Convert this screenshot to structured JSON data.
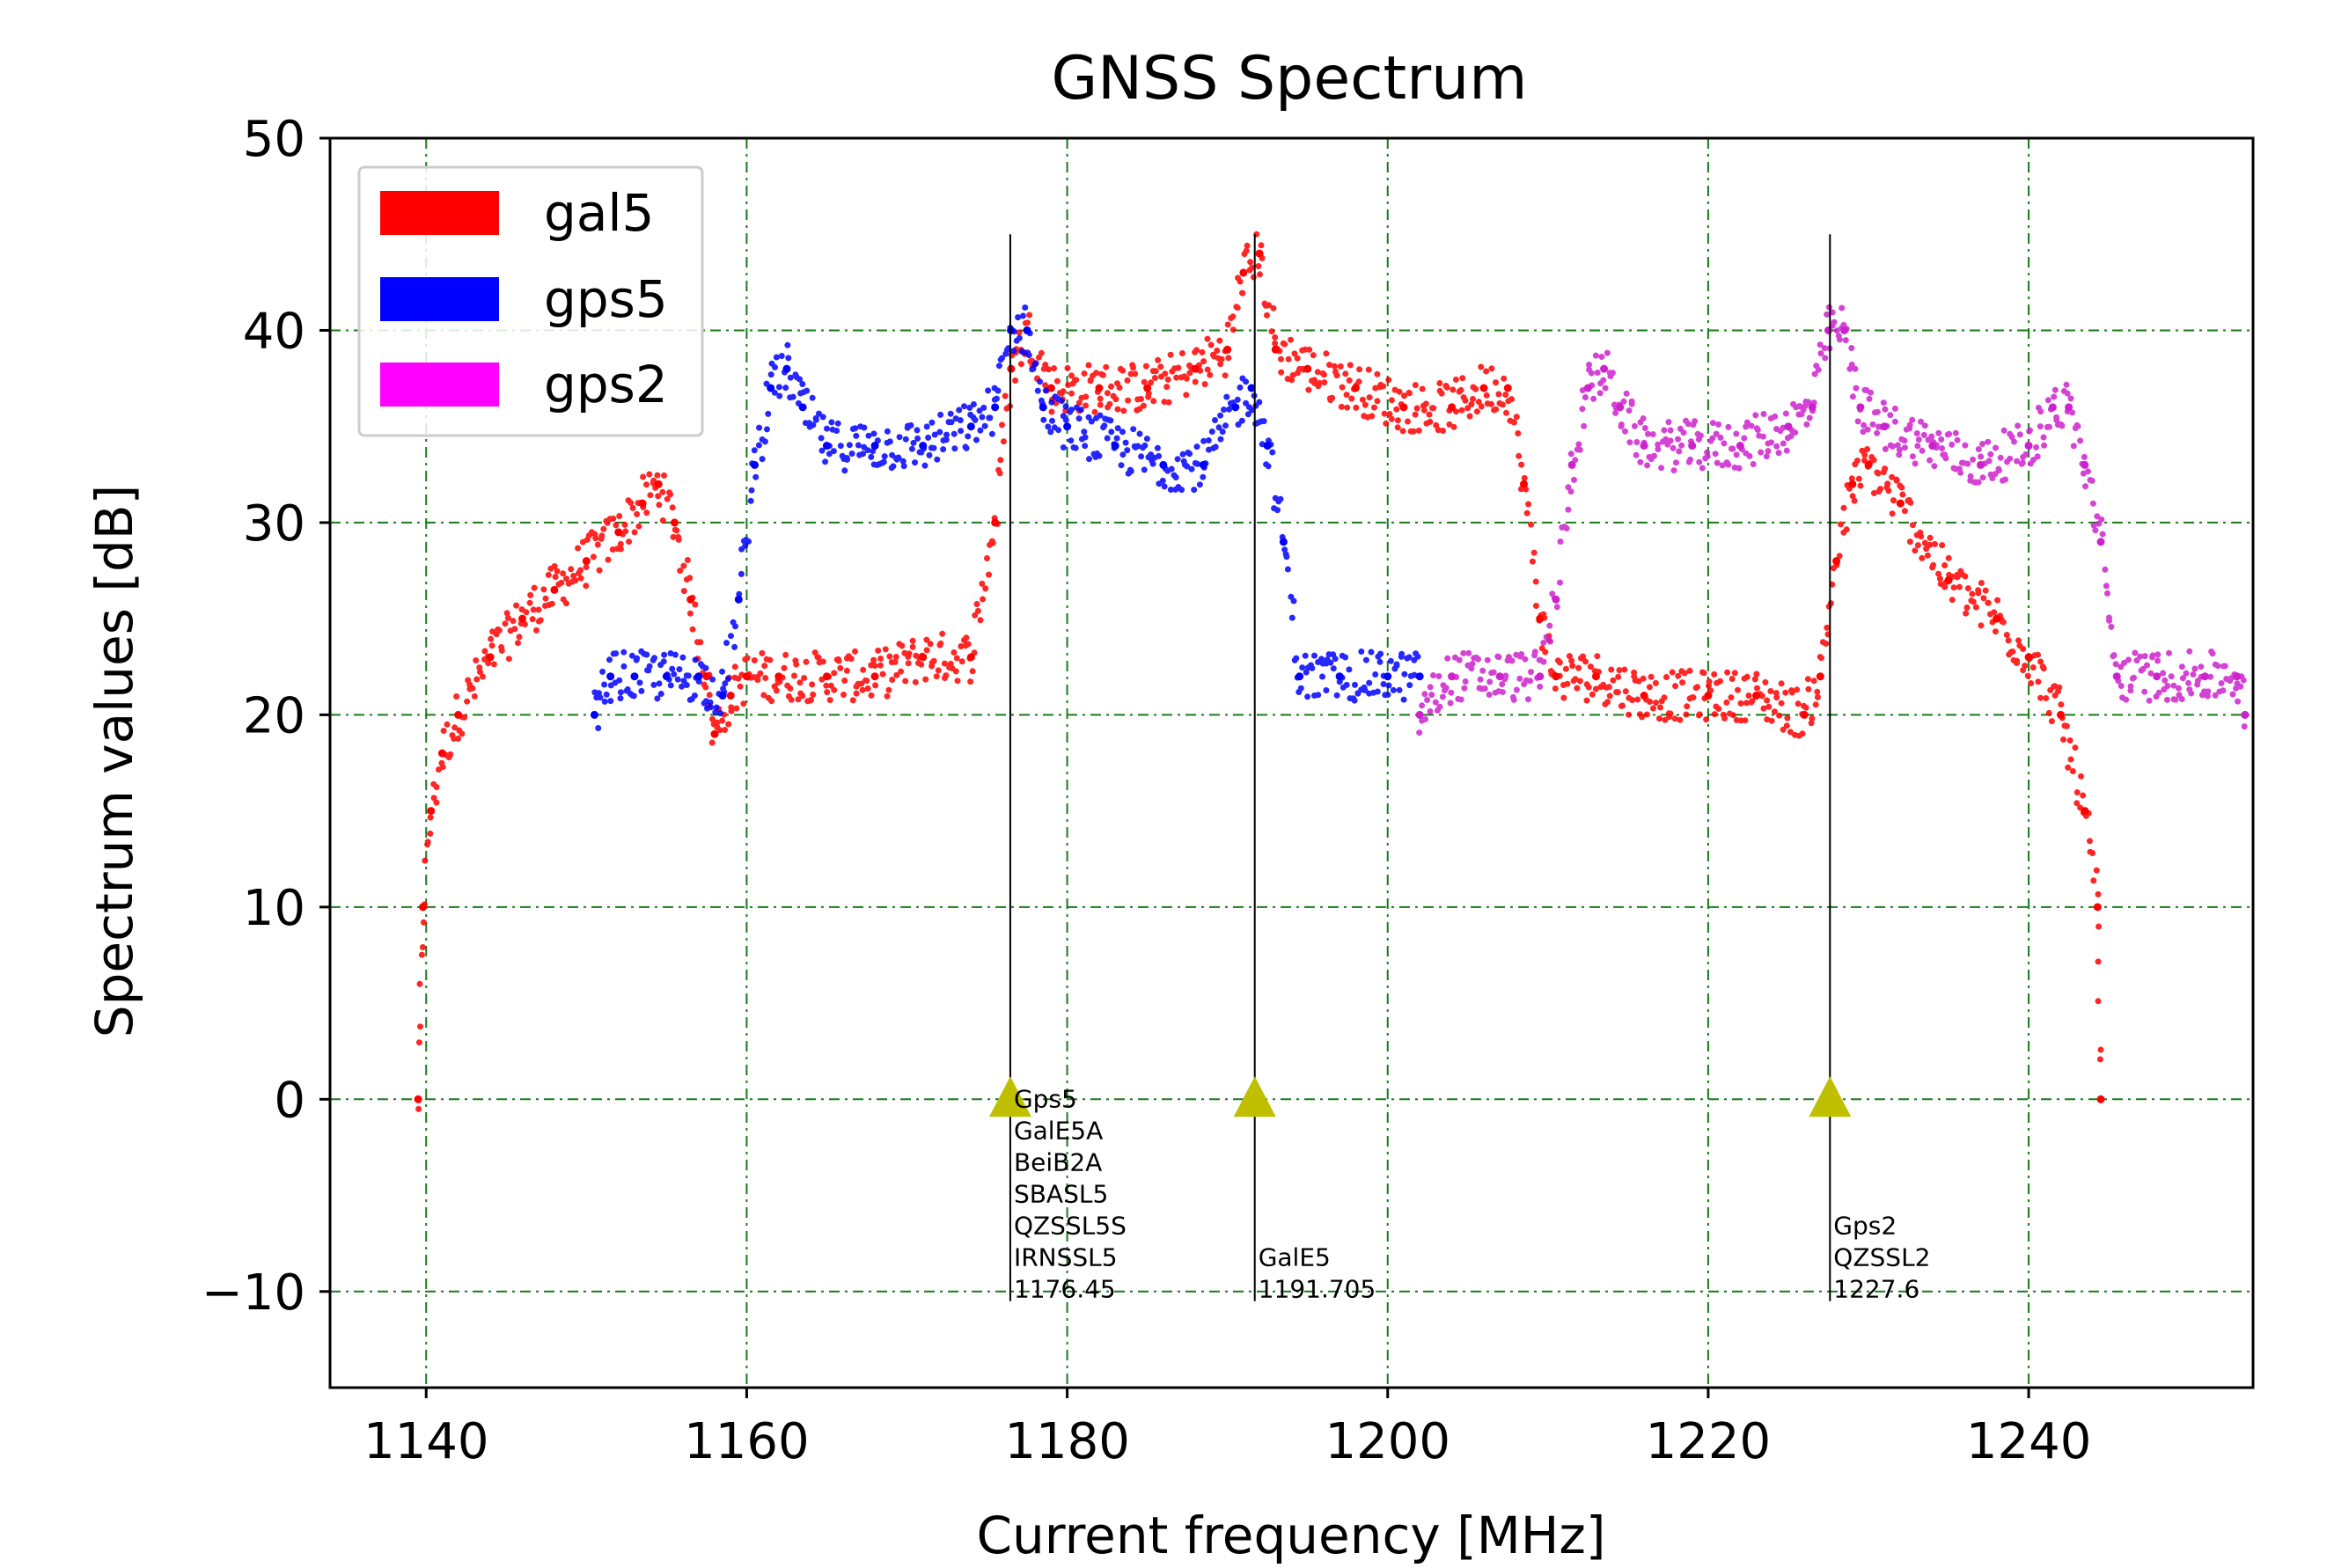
{
  "chart_data": {
    "type": "scatter",
    "title": "GNSS Spectrum",
    "xlabel": "Current frequency [MHz]",
    "ylabel": "Spectrum values [dB]",
    "xlim": [
      1134,
      1254
    ],
    "ylim": [
      -15,
      50
    ],
    "xticks": [
      1140,
      1160,
      1180,
      1200,
      1220,
      1240
    ],
    "yticks": [
      -10,
      0,
      10,
      20,
      30,
      40,
      50
    ],
    "ytick_labels": [
      "−10",
      "0",
      "10",
      "20",
      "30",
      "40",
      "50"
    ],
    "grid": true,
    "legend_position": "upper-left",
    "series": [
      {
        "name": "gal5",
        "color": "#ff0000",
        "x": [
          1139.5,
          1139.8,
          1140.3,
          1141,
          1142,
          1144,
          1146,
          1148,
          1150,
          1152,
          1153.5,
          1154.5,
          1155.5,
          1156.5,
          1157.5,
          1158,
          1159,
          1160,
          1162,
          1165,
          1168,
          1171,
          1174,
          1175.5,
          1176.5,
          1177.5,
          1179,
          1182,
          1185,
          1188,
          1190,
          1191,
          1192,
          1193,
          1195,
          1198,
          1201,
          1204,
          1206,
          1207.5,
          1208.5,
          1209.5,
          1210.5,
          1213,
          1216,
          1220,
          1223,
          1226,
          1227,
          1228,
          1229,
          1230,
          1232,
          1235,
          1238,
          1240,
          1242,
          1243.5,
          1244.3,
          1244.5
        ],
        "y": [
          0,
          10,
          15,
          18,
          20,
          23,
          25,
          26.5,
          28,
          29.5,
          31,
          32,
          30,
          26,
          22,
          19,
          21,
          22,
          22,
          22,
          22,
          23,
          23,
          30,
          38,
          40,
          37,
          37,
          37,
          38,
          39,
          43,
          44,
          39,
          38,
          37,
          36,
          36,
          37,
          37,
          32,
          25,
          22,
          22,
          21,
          21,
          21,
          20,
          22,
          28,
          32,
          33,
          31,
          27,
          25,
          23,
          20,
          15,
          10,
          0
        ]
      },
      {
        "name": "gps5",
        "color": "#0000ff",
        "x": [
          1150.5,
          1151.5,
          1153,
          1155,
          1157,
          1158.5,
          1159.5,
          1160.5,
          1161.5,
          1162.5,
          1163.5,
          1165,
          1168,
          1171,
          1174,
          1175.5,
          1176.5,
          1177.5,
          1178.5,
          1180,
          1183,
          1186,
          1188.5,
          1190.5,
          1191.5,
          1192.5,
          1193.5,
          1194.5,
          1197,
          1200,
          1202
        ],
        "y": [
          20,
          22,
          22,
          22,
          22,
          21,
          26,
          33,
          37,
          38,
          36,
          34,
          34,
          34,
          35,
          36,
          40,
          40,
          36,
          35,
          34,
          33,
          33,
          36,
          37,
          34,
          29,
          22,
          22,
          22,
          22
        ]
      },
      {
        "name": "gps2",
        "color": "#cc22cc",
        "x": [
          1202,
          1204,
          1207,
          1209.5,
          1210.5,
          1211.5,
          1212.5,
          1213.5,
          1214.5,
          1216,
          1219,
          1222,
          1225,
          1226.5,
          1227.5,
          1228.5,
          1229.5,
          1231,
          1234,
          1237,
          1240,
          1241.5,
          1242.5,
          1243.5,
          1244.5,
          1245.5,
          1248,
          1251,
          1253,
          1253.5
        ],
        "y": [
          20,
          22,
          22,
          22,
          26,
          33,
          37,
          38,
          36,
          34,
          34,
          34,
          35,
          36,
          40,
          40,
          36,
          35,
          34,
          33,
          34,
          36,
          36,
          33,
          29,
          22,
          22,
          22,
          22,
          20
        ]
      }
    ],
    "markers": [
      {
        "x": 1176.45,
        "y": 0,
        "lines": [
          "Gps5",
          "GalE5A",
          "BeiB2A",
          "SBASL5",
          "QZSSL5S",
          "IRNSSL5",
          "1176.45"
        ]
      },
      {
        "x": 1191.705,
        "y": 0,
        "lines": [
          "GalE5",
          "1191.705"
        ]
      },
      {
        "x": 1227.6,
        "y": 0,
        "lines": [
          "Gps2",
          "QZSSL2",
          "1227.6"
        ]
      }
    ],
    "marker_color": "#bfbf00",
    "vline_top": 45,
    "vline_bottom": -10.5,
    "grid_color": "#1a7a1a"
  }
}
